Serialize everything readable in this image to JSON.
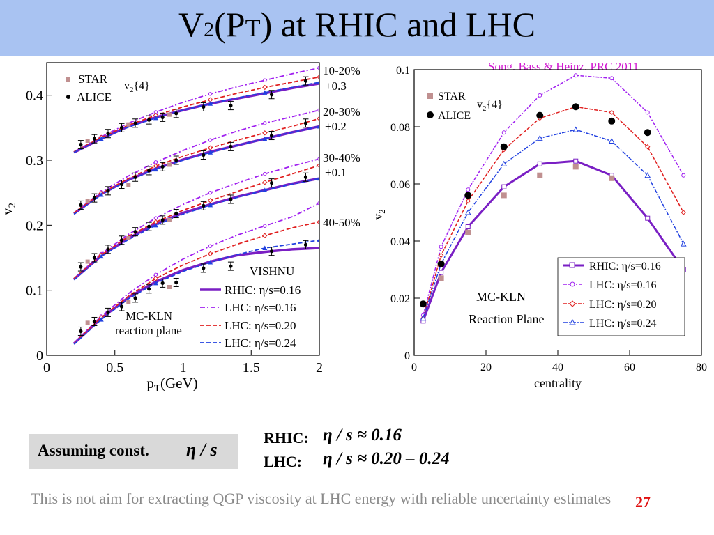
{
  "title": {
    "v": "V",
    "sub": "2",
    "mid": "(P",
    "t": "T",
    "rest": ") at RHIC and LHC"
  },
  "citation": "Song,  Bass & Heinz, PRC 2011",
  "assume_label": "Assuming const.",
  "assume_eta": "η / s",
  "rhic_label": "RHIC:",
  "rhic_eq": "η / s ≈ 0.16",
  "lhc_label": "LHC:",
  "lhc_eq": "η / s ≈ 0.20 – 0.24",
  "note": "This is not aim for extracting QGP viscosity at LHC energy with reliable uncertainty estimates",
  "page_number": "27",
  "colors": {
    "rhic": "#7a1fc4",
    "lhc016": "#a020f0",
    "lhc020": "#e02020",
    "lhc024": "#2040e0",
    "star": "#c09090",
    "alice": "#000000",
    "title_bar": "#a9c3f2",
    "citation": "#d21bd2"
  },
  "chart_data": [
    {
      "type": "line",
      "xlabel": "p_T(GeV)",
      "ylabel": "v_2",
      "xlim": [
        0,
        2
      ],
      "ylim": [
        0,
        0.45
      ],
      "xticks": [
        "0",
        "0.5",
        "1",
        "1.5",
        "2"
      ],
      "yticks": [
        "0",
        "0.1",
        "0.2",
        "0.3",
        "0.4"
      ],
      "legend_title": "VISHNU",
      "legend_entries": [
        "RHIC: η/s=0.16",
        "LHC: η/s=0.16",
        "LHC: η/s=0.20",
        "LHC: η/s=0.24"
      ],
      "data_legend": [
        "STAR",
        "ALICE"
      ],
      "data_label": "v_2{4}",
      "annotations": [
        "MC-KLN",
        "reaction plane"
      ],
      "centrality_labels": [
        {
          "label": "10-20%",
          "offset": "+0.3"
        },
        {
          "label": "20-30%",
          "offset": "+0.2"
        },
        {
          "label": "30-40%",
          "offset": "+0.1"
        },
        {
          "label": "40-50%",
          "offset": ""
        }
      ],
      "x": [
        0.2,
        0.4,
        0.6,
        0.8,
        1.0,
        1.2,
        1.4,
        1.6,
        1.8,
        2.0
      ],
      "series": [
        {
          "name": "RHIC: η/s=0.16",
          "panels": [
            [
              0.312,
              0.333,
              0.352,
              0.366,
              0.377,
              0.387,
              0.395,
              0.403,
              0.411,
              0.418
            ],
            [
              0.218,
              0.248,
              0.27,
              0.287,
              0.301,
              0.313,
              0.323,
              0.333,
              0.343,
              0.352
            ],
            [
              0.117,
              0.153,
              0.18,
              0.202,
              0.219,
              0.232,
              0.244,
              0.254,
              0.264,
              0.272
            ],
            [
              0.018,
              0.057,
              0.089,
              0.113,
              0.131,
              0.144,
              0.154,
              0.159,
              0.163,
              0.165
            ]
          ]
        },
        {
          "name": "LHC: η/s=0.16",
          "panels": [
            [
              0.313,
              0.336,
              0.357,
              0.374,
              0.389,
              0.402,
              0.413,
              0.423,
              0.433,
              0.442
            ],
            [
              0.219,
              0.251,
              0.276,
              0.297,
              0.315,
              0.331,
              0.345,
              0.357,
              0.367,
              0.377
            ],
            [
              0.118,
              0.156,
              0.186,
              0.211,
              0.232,
              0.25,
              0.265,
              0.279,
              0.291,
              0.302
            ],
            [
              0.019,
              0.06,
              0.095,
              0.124,
              0.148,
              0.168,
              0.185,
              0.199,
              0.213,
              0.234
            ]
          ]
        },
        {
          "name": "LHC: η/s=0.20",
          "panels": [
            [
              0.313,
              0.335,
              0.354,
              0.369,
              0.382,
              0.393,
              0.403,
              0.412,
              0.42,
              0.428
            ],
            [
              0.219,
              0.249,
              0.272,
              0.291,
              0.306,
              0.319,
              0.331,
              0.342,
              0.352,
              0.364
            ],
            [
              0.118,
              0.154,
              0.183,
              0.205,
              0.223,
              0.238,
              0.252,
              0.266,
              0.279,
              0.292
            ],
            [
              0.018,
              0.058,
              0.091,
              0.118,
              0.139,
              0.156,
              0.171,
              0.184,
              0.196,
              0.205
            ]
          ]
        },
        {
          "name": "LHC: η/s=0.24",
          "panels": [
            [
              0.312,
              0.333,
              0.351,
              0.365,
              0.377,
              0.387,
              0.396,
              0.404,
              0.412,
              0.42
            ],
            [
              0.217,
              0.247,
              0.269,
              0.286,
              0.3,
              0.312,
              0.323,
              0.333,
              0.343,
              0.352
            ],
            [
              0.116,
              0.152,
              0.178,
              0.2,
              0.217,
              0.231,
              0.243,
              0.254,
              0.263,
              0.272
            ],
            [
              0.017,
              0.055,
              0.087,
              0.111,
              0.129,
              0.143,
              0.155,
              0.165,
              0.171,
              0.177
            ]
          ]
        }
      ],
      "alice_points": [
        {
          "x": [
            0.25,
            0.35,
            0.45,
            0.55,
            0.65,
            0.75,
            0.85,
            0.95,
            1.15,
            1.35,
            1.65,
            1.9
          ],
          "y": [
            0.324,
            0.333,
            0.341,
            0.35,
            0.357,
            0.362,
            0.366,
            0.372,
            0.382,
            0.384,
            0.401,
            0.422
          ]
        },
        {
          "x": [
            0.25,
            0.35,
            0.45,
            0.55,
            0.65,
            0.75,
            0.85,
            0.95,
            1.15,
            1.35,
            1.65,
            1.9
          ],
          "y": [
            0.231,
            0.242,
            0.253,
            0.263,
            0.274,
            0.284,
            0.29,
            0.3,
            0.308,
            0.321,
            0.338,
            0.357
          ]
        },
        {
          "x": [
            0.25,
            0.35,
            0.45,
            0.55,
            0.65,
            0.75,
            0.85,
            0.95,
            1.15,
            1.35,
            1.65,
            1.9
          ],
          "y": [
            0.136,
            0.15,
            0.163,
            0.177,
            0.19,
            0.198,
            0.208,
            0.218,
            0.23,
            0.24,
            0.265,
            0.274
          ]
        },
        {
          "x": [
            0.25,
            0.35,
            0.45,
            0.55,
            0.65,
            0.75,
            0.85,
            0.95,
            1.15,
            1.35,
            1.65,
            1.9
          ],
          "y": [
            0.037,
            0.052,
            0.066,
            0.075,
            0.088,
            0.102,
            0.111,
            0.112,
            0.134,
            0.137,
            0.16,
            0.17
          ]
        }
      ],
      "star_points": [
        {
          "x": [
            0.3,
            0.6,
            0.9
          ],
          "y": [
            0.33,
            0.355,
            0.37
          ]
        },
        {
          "x": [
            0.3,
            0.6,
            0.9
          ],
          "y": [
            0.237,
            0.262,
            0.293
          ]
        },
        {
          "x": [
            0.3,
            0.6,
            0.9
          ],
          "y": [
            0.144,
            0.18,
            0.208
          ]
        },
        {
          "x": [
            0.3,
            0.6,
            0.9
          ],
          "y": [
            0.05,
            0.082,
            0.105
          ]
        }
      ]
    },
    {
      "type": "line",
      "xlabel": "centrality",
      "ylabel": "v_2",
      "xlim": [
        0,
        80
      ],
      "ylim": [
        0,
        0.1
      ],
      "xticks": [
        "0",
        "20",
        "40",
        "60",
        "80"
      ],
      "yticks": [
        "0",
        "0.02",
        "0.04",
        "0.06",
        "0.08",
        "0.1"
      ],
      "data_legend": [
        "STAR",
        "ALICE"
      ],
      "data_label": "v_2{4}",
      "legend_entries": [
        "RHIC: η/s=0.16",
        "LHC: η/s=0.16",
        "LHC: η/s=0.20",
        "LHC: η/s=0.24"
      ],
      "annotations": [
        "MC-KLN",
        "Reaction Plane"
      ],
      "x": [
        2.5,
        7.5,
        15,
        25,
        35,
        45,
        55,
        65,
        75
      ],
      "series": [
        {
          "name": "RHIC: η/s=0.16",
          "values": [
            0.012,
            0.029,
            0.045,
            0.059,
            0.067,
            0.068,
            0.063,
            0.048,
            0.03
          ]
        },
        {
          "name": "LHC: η/s=0.16",
          "values": [
            0.014,
            0.038,
            0.058,
            0.078,
            0.091,
            0.098,
            0.097,
            0.085,
            0.063
          ]
        },
        {
          "name": "LHC: η/s=0.20",
          "values": [
            0.013,
            0.035,
            0.054,
            0.072,
            0.083,
            0.087,
            0.085,
            0.073,
            0.05
          ]
        },
        {
          "name": "LHC: η/s=0.24",
          "values": [
            0.013,
            0.032,
            0.05,
            0.067,
            0.076,
            0.079,
            0.075,
            0.063,
            0.039
          ]
        }
      ],
      "alice_points": {
        "x": [
          2.5,
          7.5,
          15,
          25,
          35,
          45,
          55,
          65
        ],
        "y": [
          0.018,
          0.032,
          0.056,
          0.073,
          0.084,
          0.087,
          0.082,
          0.078
        ]
      },
      "star_points": {
        "x": [
          7.5,
          15,
          25,
          35,
          45,
          55
        ],
        "y": [
          0.027,
          0.043,
          0.056,
          0.063,
          0.066,
          0.062
        ]
      }
    }
  ]
}
